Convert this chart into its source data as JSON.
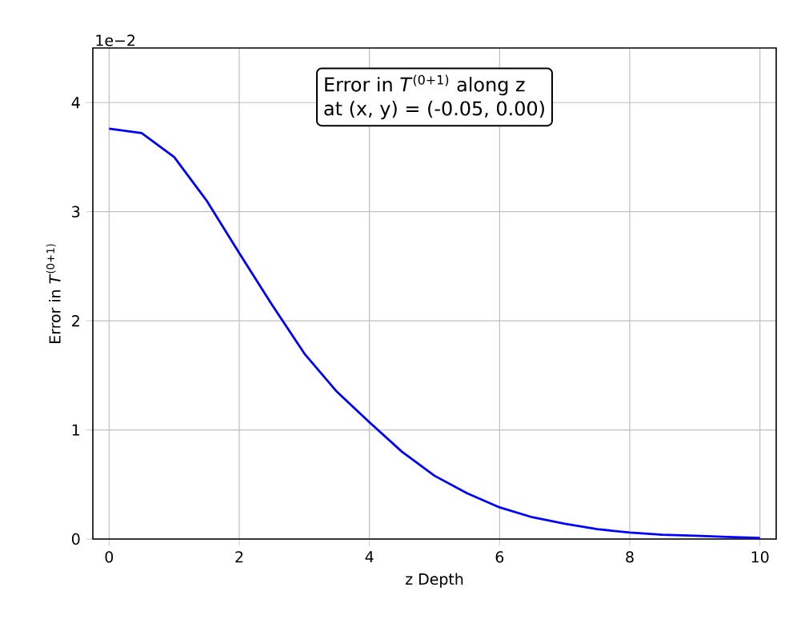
{
  "chart_data": {
    "type": "line",
    "xlabel": "z Depth",
    "ylabel": "Error in *T*$^{(0+1)}$",
    "annotations": [
      "Error in *T*$^{(0+1)}$ along z",
      "at (x, y) = (-0.05, 0.00)",
      "1e−2"
    ],
    "x": [
      0,
      0.5,
      1,
      1.5,
      2,
      2.5,
      3,
      3.5,
      4,
      4.5,
      5,
      5.5,
      6,
      6.5,
      7,
      7.5,
      8,
      8.5,
      9,
      9.5,
      10
    ],
    "series": [
      {
        "color": "#0000ff",
        "values": [
          3.76,
          3.72,
          3.5,
          3.1,
          2.62,
          2.15,
          1.7,
          1.35,
          1.07,
          0.8,
          0.58,
          0.42,
          0.29,
          0.2,
          0.14,
          0.09,
          0.06,
          0.04,
          0.03,
          0.02,
          0.01
        ]
      }
    ],
    "xlim": [
      -0.25,
      10.25
    ],
    "ylim": [
      0,
      4.5
    ],
    "xticks": [
      0,
      2,
      4,
      6,
      8,
      10
    ],
    "yticks": [
      0,
      1,
      2,
      3,
      4
    ],
    "grid": true
  }
}
